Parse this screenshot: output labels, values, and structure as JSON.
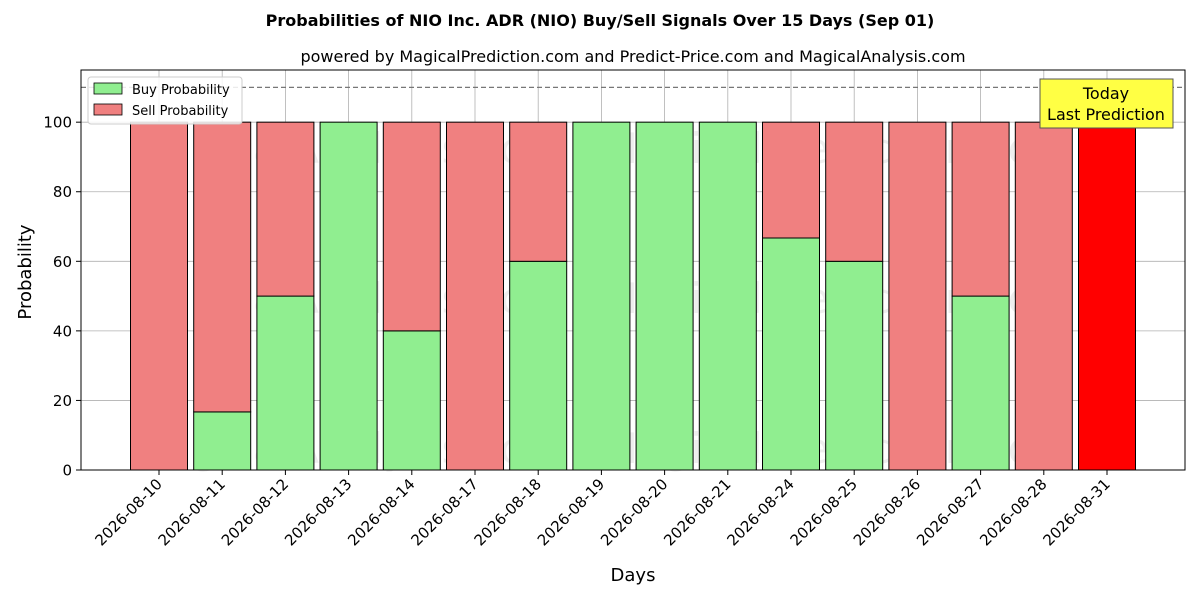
{
  "chart_data": {
    "type": "bar",
    "stacked": true,
    "title": "Probabilities of NIO Inc. ADR (NIO) Buy/Sell Signals Over 15 Days (Sep 01)",
    "subtitle": "powered by MagicalPrediction.com and Predict-Price.com and MagicalAnalysis.com",
    "xlabel": "Days",
    "ylabel": "Probability",
    "ylim": [
      0,
      115
    ],
    "yticks": [
      0,
      20,
      40,
      60,
      80,
      100
    ],
    "grid": true,
    "legend_position": "top-left",
    "reference_line": 110,
    "categories": [
      "2026-08-10",
      "2026-08-11",
      "2026-08-12",
      "2026-08-13",
      "2026-08-14",
      "2026-08-17",
      "2026-08-18",
      "2026-08-19",
      "2026-08-20",
      "2026-08-21",
      "2026-08-24",
      "2026-08-25",
      "2026-08-26",
      "2026-08-27",
      "2026-08-28",
      "2026-08-31"
    ],
    "series": [
      {
        "name": "Buy Probability",
        "color": "#90ee90",
        "values": [
          0,
          16.7,
          50,
          100,
          40,
          0,
          60,
          100,
          100,
          100,
          66.7,
          60,
          0,
          50,
          0,
          0
        ]
      },
      {
        "name": "Sell Probability",
        "color": "#f08080",
        "values": [
          100,
          83.3,
          50,
          0,
          60,
          100,
          40,
          0,
          0,
          0,
          33.3,
          40,
          100,
          50,
          100,
          100
        ]
      }
    ],
    "highlight": {
      "index": 15,
      "color": "#ff0000"
    },
    "annotation": {
      "line1": "Today",
      "line2": "Last Prediction",
      "background": "#ffff44"
    },
    "watermarks": [
      "MagicalAnalysis.com",
      "MagicalPrediction.com"
    ]
  }
}
